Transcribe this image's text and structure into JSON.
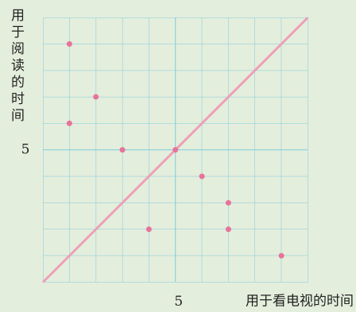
{
  "chart_data": {
    "type": "scatter",
    "x_label": "用于看电视的时间",
    "y_label": "用于阅读的时间",
    "x": [
      1,
      2,
      1,
      3,
      5,
      6,
      7,
      4,
      7,
      9
    ],
    "values": [
      9,
      7,
      6,
      5,
      5,
      4,
      3,
      2,
      2,
      1
    ],
    "color": "#e8739a",
    "line_color": "#eea0b8",
    "xlim": [
      0,
      10
    ],
    "ylim": [
      0,
      10
    ],
    "xticks": [
      5
    ],
    "yticks": [
      5
    ]
  }
}
